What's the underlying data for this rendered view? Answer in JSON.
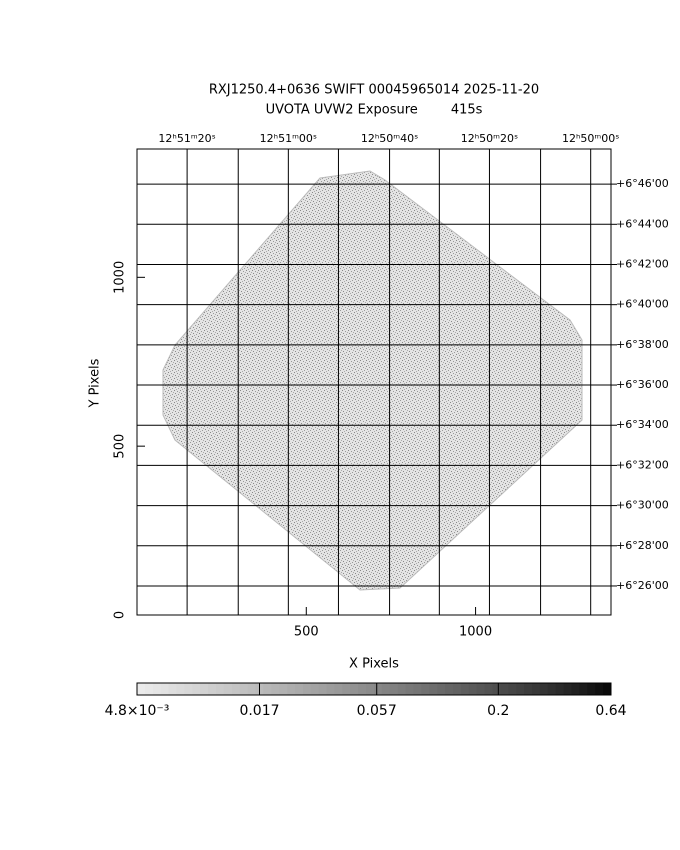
{
  "chart_data": {
    "type": "image",
    "title": "RXJ1250.4+0636 SWIFT 00045965014 2025-11-20",
    "subtitle": "UVOTA UVW2 Exposure        415s",
    "xlabel": "X Pixels",
    "ylabel": "Y Pixels",
    "xlim": [
      0,
      1400
    ],
    "ylim": [
      0,
      1380
    ],
    "xticks": [
      500,
      1000
    ],
    "yticks": [
      0,
      500,
      1000
    ],
    "grid": true,
    "x_grid": [
      148,
      299,
      447,
      595,
      746,
      893,
      1041,
      1192,
      1340
    ],
    "x2ticks": [
      {
        "value": 148,
        "label": "12ʰ51ᵐ20ˢ"
      },
      {
        "value": 447,
        "label": "12ʰ51ᵐ00ˢ"
      },
      {
        "value": 746,
        "label": "12ʰ50ᵐ40ˢ"
      },
      {
        "value": 1041,
        "label": "12ʰ50ᵐ20ˢ"
      },
      {
        "value": 1340,
        "label": "12ʰ50ᵐ00ˢ"
      }
    ],
    "y2ticks": [
      {
        "value": 1276,
        "label": "+6°46'00"
      },
      {
        "value": 1157,
        "label": "+6°44'00"
      },
      {
        "value": 1038,
        "label": "+6°42'00"
      },
      {
        "value": 919,
        "label": "+6°40'00"
      },
      {
        "value": 800,
        "label": "+6°38'00"
      },
      {
        "value": 681,
        "label": "+6°36'00"
      },
      {
        "value": 562,
        "label": "+6°34'00"
      },
      {
        "value": 443,
        "label": "+6°32'00"
      },
      {
        "value": 324,
        "label": "+6°30'00"
      },
      {
        "value": 205,
        "label": "+6°28'00"
      },
      {
        "value": 86,
        "label": "+6°26'00"
      }
    ],
    "colorbar": {
      "log": true,
      "lim": [
        0.0048,
        0.64
      ],
      "ticks": [
        {
          "value": 0.0048,
          "label": "4.8×10⁻³"
        },
        0.017,
        0.057,
        0.2,
        0.64
      ]
    }
  }
}
